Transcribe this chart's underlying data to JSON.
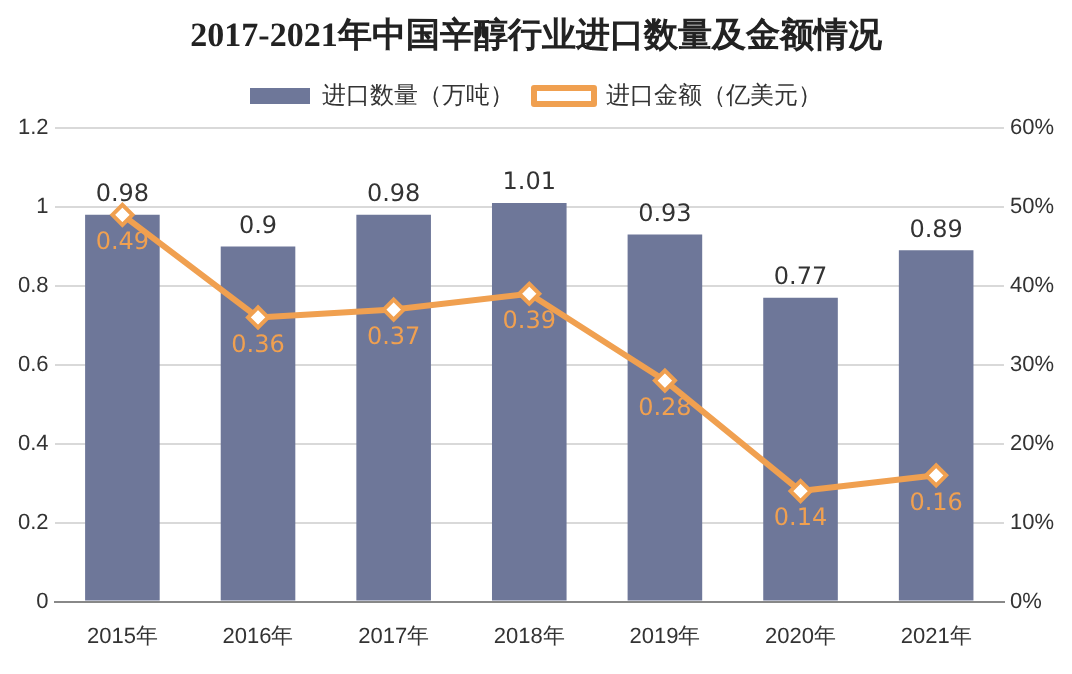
{
  "chart_data": {
    "type": "bar",
    "title": "2017-2021年中国辛醇行业进口数量及金额情况",
    "categories": [
      "2015年",
      "2016年",
      "2017年",
      "2018年",
      "2019年",
      "2020年",
      "2021年"
    ],
    "series": [
      {
        "name": "进口数量（万吨）",
        "color": "#6e7799",
        "values": [
          0.98,
          0.9,
          0.98,
          1.01,
          0.93,
          0.77,
          0.89
        ]
      },
      {
        "name": "进口金额（亿美元）",
        "type": "line",
        "axis": "y2",
        "color": "#f0a050",
        "marker": "diamond",
        "values": [
          0.49,
          0.36,
          0.37,
          0.39,
          0.28,
          0.14,
          0.16
        ]
      }
    ],
    "ylim": [
      0,
      1.2
    ],
    "yticks": [
      0,
      0.2,
      0.4,
      0.6,
      0.8,
      1,
      1.2
    ],
    "y2lim": [
      0,
      0.6
    ],
    "y2ticks": [
      {
        "value": 0,
        "label": "0%"
      },
      {
        "value": 0.1,
        "label": "10%"
      },
      {
        "value": 0.2,
        "label": "20%"
      },
      {
        "value": 0.3,
        "label": "30%"
      },
      {
        "value": 0.4,
        "label": "40%"
      },
      {
        "value": 0.5,
        "label": "50%"
      },
      {
        "value": 0.6,
        "label": "60%"
      }
    ],
    "grid": "y",
    "legend": "top",
    "data_labels": true
  }
}
